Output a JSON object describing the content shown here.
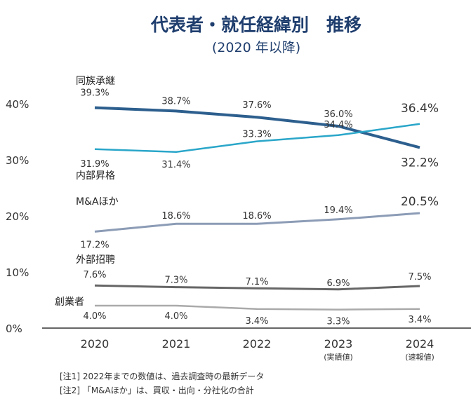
{
  "chart_data": {
    "type": "line",
    "title": "代表者・就任経緯別　推移",
    "subtitle": "(2020 年以降)",
    "categories": [
      "2020",
      "2021",
      "2022",
      "2023",
      "2024"
    ],
    "category_sublabels": [
      "",
      "",
      "",
      "(実績値)",
      "(速報値)"
    ],
    "ylim": [
      0,
      40
    ],
    "yticks": [
      "0%",
      "10%",
      "20%",
      "30%",
      "40%"
    ],
    "grid": false,
    "series": [
      {
        "name": "同族承継",
        "values": [
          39.3,
          38.7,
          37.6,
          36.0,
          32.2
        ],
        "labels": [
          "39.3%",
          "38.7%",
          "37.6%",
          "36.0%",
          "32.2%"
        ],
        "color": "#2d5f8e"
      },
      {
        "name": "内部昇格",
        "values": [
          31.9,
          31.4,
          33.3,
          34.4,
          36.4
        ],
        "labels": [
          "31.9%",
          "31.4%",
          "33.3%",
          "34.4%",
          "36.4%"
        ],
        "color": "#2aa6c9"
      },
      {
        "name": "M&Aほか",
        "values": [
          17.2,
          18.6,
          18.6,
          19.4,
          20.5
        ],
        "labels": [
          "17.2%",
          "18.6%",
          "18.6%",
          "19.4%",
          "20.5%"
        ],
        "color": "#8c9cb6"
      },
      {
        "name": "外部招聘",
        "values": [
          7.6,
          7.3,
          7.1,
          6.9,
          7.5
        ],
        "labels": [
          "7.6%",
          "7.3%",
          "7.1%",
          "6.9%",
          "7.5%"
        ],
        "color": "#666666"
      },
      {
        "name": "創業者",
        "values": [
          4.0,
          4.0,
          3.4,
          3.3,
          3.4
        ],
        "labels": [
          "4.0%",
          "4.0%",
          "3.4%",
          "3.3%",
          "3.4%"
        ],
        "color": "#aaaaaa"
      }
    ],
    "notes": [
      "[注1] 2022年までの数値は、過去調査時の最新データ",
      "[注2] 「M&Aほか」は、買収・出向・分社化の合計"
    ]
  }
}
